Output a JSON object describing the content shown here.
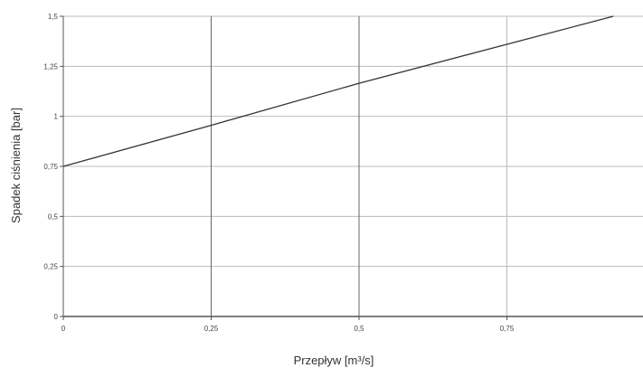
{
  "chart_data": {
    "type": "line",
    "title": "",
    "xlabel": "Przepływ [m³/s]",
    "ylabel": "Spadek ciśnienia [bar]",
    "xlim": [
      0,
      1
    ],
    "ylim": [
      0,
      1.5
    ],
    "x_ticks": [
      {
        "value": 0,
        "label": "0"
      },
      {
        "value": 0.25,
        "label": "0,25"
      },
      {
        "value": 0.5,
        "label": "0,5"
      },
      {
        "value": 0.75,
        "label": "0,75"
      }
    ],
    "y_ticks": [
      {
        "value": 0,
        "label": "0"
      },
      {
        "value": 0.25,
        "label": "0,25"
      },
      {
        "value": 0.5,
        "label": "0,5"
      },
      {
        "value": 0.75,
        "label": "0,75"
      },
      {
        "value": 1,
        "label": "1"
      },
      {
        "value": 1.25,
        "label": "1,25"
      },
      {
        "value": 1.5,
        "label": "1,5"
      }
    ],
    "grid": true,
    "legend": "none",
    "series": [
      {
        "color": "#333333",
        "x": [
          0,
          0.25,
          0.5,
          0.75,
          0.93
        ],
        "y": [
          0.75,
          0.955,
          1.165,
          1.36,
          1.5
        ]
      }
    ],
    "colors": {
      "grid": "#bbbbbb",
      "axis": "#555555",
      "line": "#333333"
    }
  }
}
